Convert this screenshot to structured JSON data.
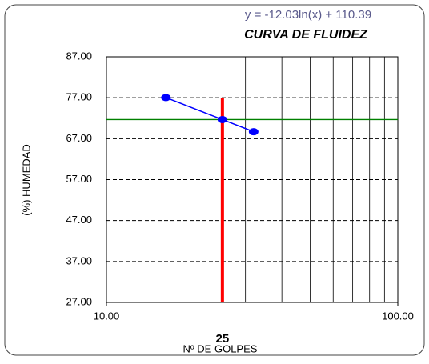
{
  "chart_data": {
    "type": "line",
    "title": "CURVA DE FLUIDEZ",
    "annotation": "y = -12.03ln(x) + 110.39",
    "x_label": "Nº DE GOLPES",
    "y_label": "(%) HUMEDAD",
    "x": [
      16,
      25,
      32
    ],
    "series": [
      {
        "color": "#0000ff",
        "values": [
          77.04,
          71.67,
          68.7
        ]
      }
    ],
    "xlim": [
      10,
      100
    ],
    "x_log": true,
    "xticks": [
      {
        "value": 10,
        "label": "10.00"
      },
      {
        "value": 100,
        "label": "100.00"
      }
    ],
    "x_gridlines": [
      20,
      30,
      40,
      50,
      60,
      70,
      80,
      90
    ],
    "ylim": [
      27,
      87
    ],
    "yticks": [
      {
        "value": 27,
        "label": "27.00"
      },
      {
        "value": 37,
        "label": "37.00"
      },
      {
        "value": 47,
        "label": "47.00"
      },
      {
        "value": 57,
        "label": "57.00"
      },
      {
        "value": 67,
        "label": "67.00"
      },
      {
        "value": 77,
        "label": "77.00"
      },
      {
        "value": 87,
        "label": "87.00"
      }
    ],
    "grid": true,
    "reference_x": 25,
    "reference_x_color": "#ff0000",
    "reference_y": 71.67,
    "reference_y_color": "#008000"
  }
}
